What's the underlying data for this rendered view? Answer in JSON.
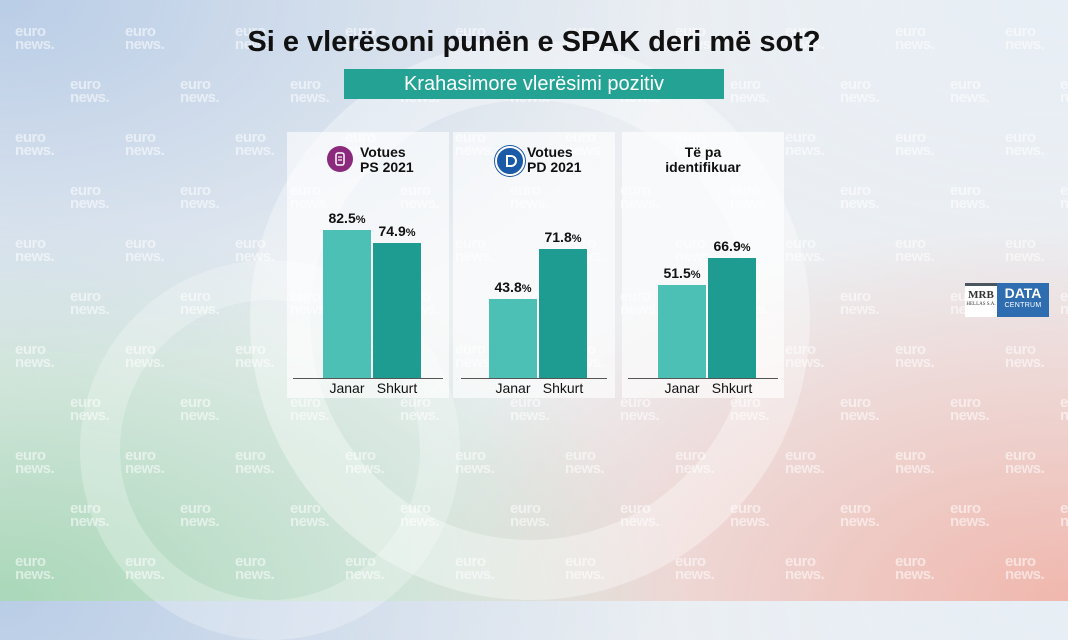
{
  "title": "Si e vlerësoni punën e SPAK deri më sot?",
  "subtitle": "Krahasimore vlerësimi pozitiv",
  "watermark": {
    "line1": "euro",
    "line2": "news."
  },
  "logo": {
    "brand1": "MRB",
    "brand1_sub": "HELLAS S.A.",
    "brand2": "DATA",
    "brand2_sub": "CENTRUM"
  },
  "colors": {
    "janar": "#4cc0b5",
    "shkurt": "#1f9c91",
    "accent": "#24a394",
    "ps_icon": "#8b2a7d",
    "pd_icon": "#1b5aa6"
  },
  "icons": [
    "ps-party-icon",
    "pd-party-icon"
  ],
  "chart_data": {
    "type": "bar",
    "title": "Si e vlerësoni punën e SPAK deri më sot?",
    "subtitle": "Krahasimore vlerësimi pozitiv",
    "categories": [
      "Janar",
      "Shkurt"
    ],
    "value_suffix": "%",
    "ylim": [
      0,
      100
    ],
    "grid": false,
    "panels": [
      {
        "label_line1": "Votues",
        "label_line2": "PS 2021",
        "icon": "ps-party-icon",
        "values": [
          82.5,
          74.9
        ],
        "value_labels": [
          "82.5",
          "74.9"
        ]
      },
      {
        "label_line1": "Votues",
        "label_line2": "PD 2021",
        "icon": "pd-party-icon",
        "values": [
          43.8,
          71.8
        ],
        "value_labels": [
          "43.8",
          "71.8"
        ]
      },
      {
        "label_line1": "Të pa",
        "label_line2": "identifikuar",
        "icon": "",
        "values": [
          51.5,
          66.9
        ],
        "value_labels": [
          "51.5",
          "66.9"
        ]
      }
    ]
  }
}
